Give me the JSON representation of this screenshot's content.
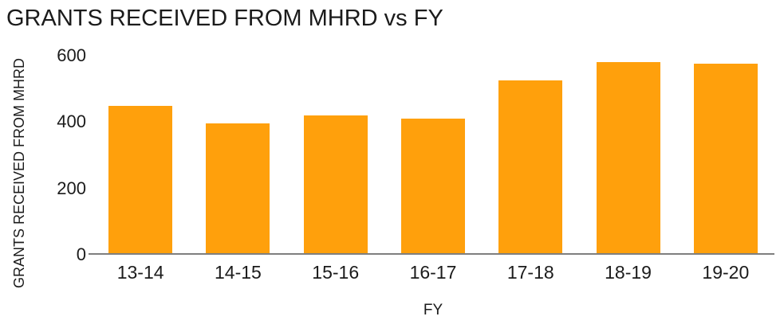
{
  "chart_data": {
    "type": "bar",
    "title": "GRANTS RECEIVED FROM MHRD vs FY",
    "xlabel": "FY",
    "ylabel": "GRANTS RECEIVED FROM MHRD",
    "categories": [
      "13-14",
      "14-15",
      "15-16",
      "16-17",
      "17-18",
      "18-19",
      "19-20"
    ],
    "values": [
      450,
      395,
      420,
      410,
      525,
      580,
      575
    ],
    "yticks": [
      0,
      200,
      400,
      600
    ],
    "ylim": [
      0,
      600
    ],
    "grid": false,
    "legend_position": "none",
    "bar_color": "#ffa00c",
    "axis_line_color": "#7f7f7f",
    "text_color": "#1b1b1b",
    "background_color": "#ffffff"
  }
}
